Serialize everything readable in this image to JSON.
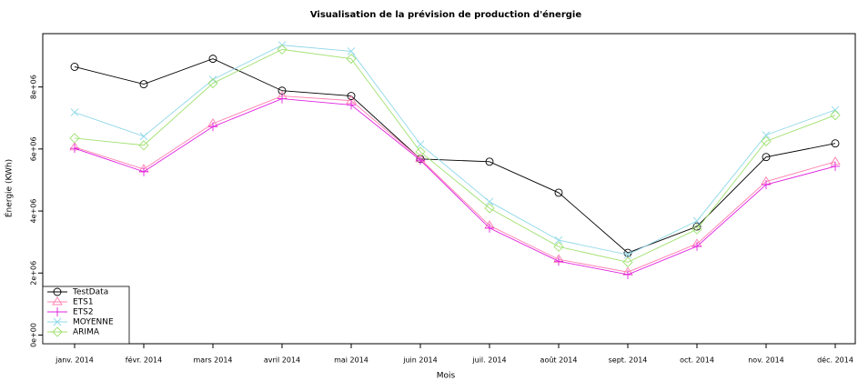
{
  "chart_data": {
    "type": "line",
    "title": "Visualisation de la prévision de production d'énergie",
    "x_label": "Mois",
    "y_label": "Énergie (KWh)",
    "categories": [
      "janv. 2014",
      "févr. 2014",
      "mars 2014",
      "avril 2014",
      "mai 2014",
      "juin 2014",
      "juil. 2014",
      "août 2014",
      "sept. 2014",
      "oct. 2014",
      "nov. 2014",
      "déc. 2014"
    ],
    "ylim": [
      -280000,
      9720000
    ],
    "yticks": [
      {
        "value": 0,
        "label": "0e+00"
      },
      {
        "value": 2000000,
        "label": "2e+06"
      },
      {
        "value": 4000000,
        "label": "4e+06"
      },
      {
        "value": 6000000,
        "label": "6e+06"
      },
      {
        "value": 8000000,
        "label": "8e+06"
      }
    ],
    "legend": "bottom-left",
    "series": [
      {
        "name": "TestData",
        "color": "#000000",
        "marker": "circle",
        "values": [
          8650000,
          8090000,
          8910000,
          7880000,
          7710000,
          5680000,
          5590000,
          4590000,
          2650000,
          3500000,
          5740000,
          6180000
        ]
      },
      {
        "name": "ETS1",
        "color": "#ff80b0",
        "marker": "triangle",
        "values": [
          6060000,
          5350000,
          6820000,
          7710000,
          7560000,
          5680000,
          3530000,
          2440000,
          2030000,
          2940000,
          4950000,
          5590000
        ]
      },
      {
        "name": "ETS2",
        "color": "#e020e0",
        "marker": "plus",
        "values": [
          6020000,
          5270000,
          6720000,
          7620000,
          7420000,
          5640000,
          3450000,
          2380000,
          1950000,
          2860000,
          4850000,
          5440000
        ]
      },
      {
        "name": "MOYENNE",
        "color": "#90d8e8",
        "marker": "cross",
        "values": [
          7180000,
          6410000,
          8240000,
          9350000,
          9150000,
          6150000,
          4300000,
          3060000,
          2590000,
          3680000,
          6450000,
          7260000
        ]
      },
      {
        "name": "ARIMA",
        "color": "#a0e070",
        "marker": "diamond",
        "values": [
          6350000,
          6120000,
          8120000,
          9210000,
          8910000,
          5910000,
          4090000,
          2850000,
          2350000,
          3410000,
          6250000,
          7090000
        ]
      }
    ]
  }
}
